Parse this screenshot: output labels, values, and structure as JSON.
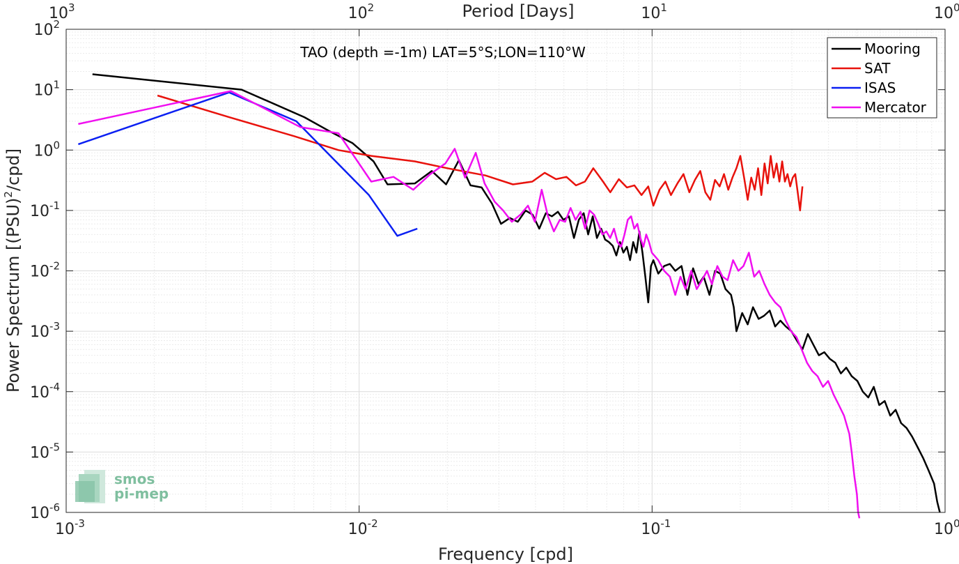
{
  "chart_data": {
    "type": "line",
    "title": "TAO (depth =-1m) LAT=5°S;LON=110°W",
    "xlabel": "Frequency [cpd]",
    "x2label": "Period [Days]",
    "ylabel": "Power Spectrum [(PSU)",
    "ylabel_sup": "2",
    "ylabel_tail": "/cpd]",
    "xscale": "log",
    "yscale": "log",
    "xlim": [
      0.001,
      1
    ],
    "ylim": [
      1e-06,
      100
    ],
    "grid": true,
    "legend_position": "top-right",
    "x_ticks": [
      {
        "base": "10",
        "exp": "-3",
        "value": 0.001
      },
      {
        "base": "10",
        "exp": "-2",
        "value": 0.01
      },
      {
        "base": "10",
        "exp": "-1",
        "value": 0.1
      },
      {
        "base": "10",
        "exp": "0",
        "value": 1
      }
    ],
    "x2_ticks": [
      {
        "base": "10",
        "exp": "3",
        "value": 0.001
      },
      {
        "base": "10",
        "exp": "2",
        "value": 0.01
      },
      {
        "base": "10",
        "exp": "1",
        "value": 0.1
      },
      {
        "base": "10",
        "exp": "0",
        "value": 1
      }
    ],
    "y_ticks": [
      {
        "base": "10",
        "exp": "2",
        "value": 100
      },
      {
        "base": "10",
        "exp": "1",
        "value": 10
      },
      {
        "base": "10",
        "exp": "0",
        "value": 1
      },
      {
        "base": "10",
        "exp": "-1",
        "value": 0.1
      },
      {
        "base": "10",
        "exp": "-2",
        "value": 0.01
      },
      {
        "base": "10",
        "exp": "-3",
        "value": 0.001
      },
      {
        "base": "10",
        "exp": "-4",
        "value": 0.0001
      },
      {
        "base": "10",
        "exp": "-5",
        "value": 1e-05
      },
      {
        "base": "10",
        "exp": "-6",
        "value": 1e-06
      }
    ],
    "series": [
      {
        "name": "Mooring",
        "color": "#000000",
        "x": [
          0.00123,
          0.00397,
          0.0065,
          0.008,
          0.0095,
          0.0112,
          0.0125,
          0.0155,
          0.0177,
          0.0198,
          0.0219,
          0.024,
          0.0262,
          0.0284,
          0.0305,
          0.0327,
          0.0348,
          0.037,
          0.0391,
          0.0412,
          0.0434,
          0.0455,
          0.0477,
          0.0498,
          0.052,
          0.0541,
          0.0562,
          0.0584,
          0.0605,
          0.0627,
          0.0648,
          0.067,
          0.0691,
          0.0712,
          0.0734,
          0.0755,
          0.0777,
          0.0798,
          0.082,
          0.0841,
          0.0862,
          0.0884,
          0.0905,
          0.0927,
          0.0948,
          0.097,
          0.0991,
          0.101,
          0.105,
          0.11,
          0.115,
          0.12,
          0.126,
          0.132,
          0.138,
          0.144,
          0.15,
          0.157,
          0.164,
          0.171,
          0.178,
          0.186,
          0.19,
          0.194,
          0.203,
          0.212,
          0.221,
          0.231,
          0.241,
          0.252,
          0.263,
          0.274,
          0.286,
          0.299,
          0.312,
          0.326,
          0.34,
          0.355,
          0.371,
          0.387,
          0.404,
          0.422,
          0.441,
          0.46,
          0.48,
          0.502,
          0.524,
          0.547,
          0.571,
          0.596,
          0.622,
          0.65,
          0.678,
          0.708,
          0.739,
          0.772,
          0.806,
          0.841,
          0.878,
          0.917,
          0.94,
          0.96
        ],
        "y": [
          18,
          10,
          3.5,
          2,
          1.3,
          0.65,
          0.27,
          0.28,
          0.45,
          0.27,
          0.68,
          0.26,
          0.24,
          0.13,
          0.06,
          0.075,
          0.065,
          0.1,
          0.085,
          0.05,
          0.09,
          0.08,
          0.095,
          0.07,
          0.08,
          0.035,
          0.07,
          0.09,
          0.04,
          0.08,
          0.035,
          0.05,
          0.033,
          0.03,
          0.026,
          0.018,
          0.03,
          0.02,
          0.025,
          0.015,
          0.03,
          0.02,
          0.045,
          0.02,
          0.008,
          0.003,
          0.012,
          0.015,
          0.009,
          0.012,
          0.013,
          0.01,
          0.012,
          0.004,
          0.011,
          0.006,
          0.008,
          0.004,
          0.01,
          0.009,
          0.005,
          0.004,
          0.0025,
          0.001,
          0.002,
          0.0013,
          0.0025,
          0.0016,
          0.0018,
          0.0022,
          0.0012,
          0.0015,
          0.0012,
          0.001,
          0.0007,
          0.0005,
          0.0009,
          0.0006,
          0.0004,
          0.00045,
          0.00035,
          0.0003,
          0.0002,
          0.00025,
          0.00018,
          0.00015,
          0.0001,
          8e-05,
          0.00012,
          6e-05,
          7e-05,
          4e-05,
          5e-05,
          3e-05,
          2.5e-05,
          1.8e-05,
          1.2e-05,
          8e-06,
          5e-06,
          3e-06,
          1.5e-06,
          1e-06
        ]
      },
      {
        "name": "SAT",
        "color": "#e8120c",
        "x": [
          0.00205,
          0.0036,
          0.006,
          0.0085,
          0.011,
          0.0155,
          0.02,
          0.027,
          0.0335,
          0.039,
          0.043,
          0.047,
          0.051,
          0.055,
          0.059,
          0.063,
          0.068,
          0.072,
          0.077,
          0.082,
          0.087,
          0.092,
          0.097,
          0.101,
          0.106,
          0.111,
          0.116,
          0.122,
          0.128,
          0.134,
          0.14,
          0.146,
          0.152,
          0.158,
          0.164,
          0.17,
          0.176,
          0.182,
          0.188,
          0.194,
          0.2,
          0.206,
          0.212,
          0.218,
          0.224,
          0.23,
          0.236,
          0.242,
          0.248,
          0.254,
          0.26,
          0.266,
          0.272,
          0.278,
          0.284,
          0.29,
          0.296,
          0.302,
          0.308,
          0.314,
          0.32,
          0.326
        ],
        "y": [
          8,
          3.5,
          1.7,
          1.0,
          0.8,
          0.65,
          0.5,
          0.38,
          0.27,
          0.3,
          0.42,
          0.33,
          0.36,
          0.26,
          0.3,
          0.5,
          0.3,
          0.2,
          0.33,
          0.24,
          0.26,
          0.18,
          0.25,
          0.12,
          0.22,
          0.3,
          0.18,
          0.28,
          0.4,
          0.2,
          0.32,
          0.45,
          0.2,
          0.15,
          0.32,
          0.25,
          0.4,
          0.22,
          0.35,
          0.5,
          0.8,
          0.35,
          0.15,
          0.35,
          0.22,
          0.5,
          0.18,
          0.6,
          0.28,
          0.8,
          0.35,
          0.6,
          0.3,
          0.65,
          0.3,
          0.4,
          0.25,
          0.35,
          0.4,
          0.2,
          0.1,
          0.25
        ]
      },
      {
        "name": "ISAS",
        "color": "#0a1ff2",
        "x": [
          0.0011,
          0.0036,
          0.0061,
          0.0108,
          0.0135,
          0.0158
        ],
        "y": [
          1.25,
          9.0,
          3.0,
          0.18,
          0.038,
          0.05
        ]
      },
      {
        "name": "Mercator",
        "color": "#f00ff0",
        "x": [
          0.0011,
          0.00365,
          0.0063,
          0.0085,
          0.011,
          0.0131,
          0.0153,
          0.0175,
          0.0197,
          0.0212,
          0.023,
          0.025,
          0.0268,
          0.029,
          0.031,
          0.0332,
          0.0355,
          0.0377,
          0.0398,
          0.042,
          0.0441,
          0.0462,
          0.0484,
          0.0505,
          0.0527,
          0.0548,
          0.057,
          0.0591,
          0.0612,
          0.0634,
          0.0655,
          0.0677,
          0.0698,
          0.0719,
          0.0741,
          0.0762,
          0.0784,
          0.0805,
          0.0826,
          0.0848,
          0.0869,
          0.0891,
          0.0912,
          0.0934,
          0.0955,
          0.0976,
          0.0998,
          0.105,
          0.11,
          0.115,
          0.12,
          0.125,
          0.13,
          0.136,
          0.142,
          0.148,
          0.154,
          0.16,
          0.167,
          0.174,
          0.181,
          0.189,
          0.197,
          0.205,
          0.214,
          0.223,
          0.232,
          0.242,
          0.252,
          0.263,
          0.274,
          0.286,
          0.298,
          0.311,
          0.324,
          0.338,
          0.352,
          0.367,
          0.383,
          0.399,
          0.416,
          0.434,
          0.452,
          0.471,
          0.48,
          0.49,
          0.5,
          0.505,
          0.51
        ],
        "y": [
          2.7,
          9.5,
          2.4,
          1.9,
          0.3,
          0.36,
          0.22,
          0.4,
          0.6,
          1.05,
          0.35,
          0.9,
          0.28,
          0.14,
          0.1,
          0.065,
          0.085,
          0.12,
          0.065,
          0.22,
          0.08,
          0.045,
          0.07,
          0.065,
          0.11,
          0.07,
          0.095,
          0.05,
          0.1,
          0.085,
          0.06,
          0.04,
          0.045,
          0.035,
          0.05,
          0.03,
          0.025,
          0.04,
          0.07,
          0.08,
          0.05,
          0.06,
          0.035,
          0.025,
          0.04,
          0.03,
          0.02,
          0.015,
          0.01,
          0.008,
          0.004,
          0.008,
          0.005,
          0.01,
          0.005,
          0.007,
          0.01,
          0.006,
          0.012,
          0.008,
          0.007,
          0.015,
          0.01,
          0.012,
          0.02,
          0.008,
          0.01,
          0.006,
          0.004,
          0.003,
          0.0025,
          0.0015,
          0.001,
          0.0008,
          0.0005,
          0.0003,
          0.00022,
          0.00018,
          0.00012,
          0.00015,
          9e-05,
          6e-05,
          4e-05,
          2e-05,
          1e-05,
          4e-06,
          2e-06,
          1e-06,
          8e-07
        ]
      }
    ],
    "logo": {
      "line1": "smos",
      "line2": "pi-mep"
    }
  }
}
